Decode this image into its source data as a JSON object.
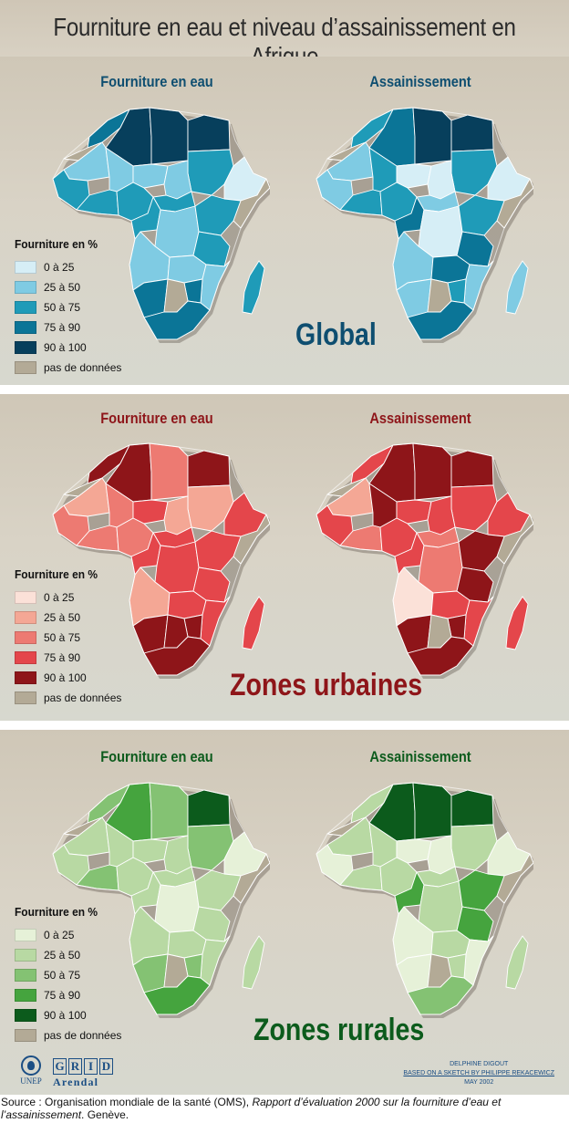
{
  "title": "Fourniture en eau et niveau d’assainissement en Afrique",
  "colors": {
    "global": [
      "#d6eef6",
      "#7fcbe3",
      "#1f9bb8",
      "#0b7597",
      "#073f5c",
      "#b3aa96"
    ],
    "urban": [
      "#fbe1d8",
      "#f4a795",
      "#ed7a72",
      "#e4464b",
      "#8e1519",
      "#b3aa96"
    ],
    "rural": [
      "#e6f1d8",
      "#b8d9a3",
      "#84c273",
      "#45a43e",
      "#0c5b1c",
      "#b3aa96"
    ],
    "global_text": "#0e4e70",
    "urban_text": "#8e1519",
    "rural_text": "#0c5b1c"
  },
  "panels": [
    {
      "map_left_title": "Fourniture en eau",
      "map_right_title": "Assainissement",
      "zone_label": "Global",
      "legend_title": "Fourniture en %",
      "legend_items": [
        "0 à  25",
        "25 à  50",
        "50 à  75",
        "75 à  90",
        "90 à  100",
        "pas de données"
      ]
    },
    {
      "map_left_title": "Fourniture en eau",
      "map_right_title": "Assainissement",
      "zone_label": "Zones urbaines",
      "legend_title": "Fourniture en %",
      "legend_items": [
        "0 à  25",
        "25 à  50",
        "50 à  75",
        "75 à  90",
        "90 à  100",
        "pas de données"
      ]
    },
    {
      "map_left_title": "Fourniture en eau",
      "map_right_title": "Assainissement",
      "zone_label": "Zones rurales",
      "legend_title": "Fourniture en %",
      "legend_items": [
        "0 à  25",
        "25 à  50",
        "50 à  75",
        "75 à  90",
        "90 à  100",
        "pas de données"
      ]
    }
  ],
  "footer": {
    "unep": "UNEP",
    "grid_letters": [
      "G",
      "R",
      "I",
      "D"
    ],
    "grid_sub": "Arendal",
    "credit_line1": "DELPHINE DIGOUT",
    "credit_line2": "BASED ON A SKETCH BY PHILIPPE REKACEWICZ",
    "credit_line3": "MAY 2002"
  },
  "source": {
    "prefix": "Source : Organisation mondiale de la santé (OMS), ",
    "italic": "Rapport d’évaluation 2000 sur la fourniture d’eau et l’assainissement",
    "suffix": ". Genève."
  }
}
